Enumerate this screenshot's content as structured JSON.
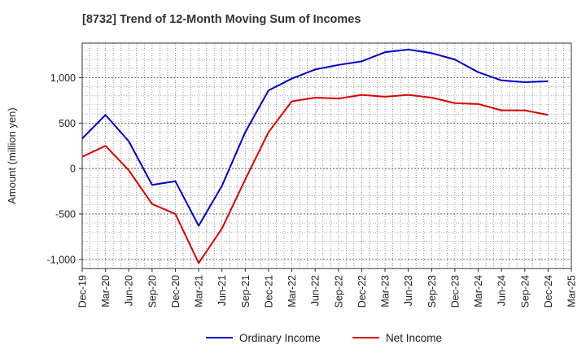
{
  "chart_data": {
    "type": "line",
    "title": "[8732]  Trend of 12-Month Moving Sum of Incomes",
    "xlabel": "",
    "ylabel": "Amount (million yen)",
    "ylim": [
      -1100,
      1380
    ],
    "yticks": [
      -1000,
      -500,
      0,
      500,
      1000
    ],
    "ytick_labels": [
      "-1,000",
      "-500",
      "0",
      "500",
      "1,000"
    ],
    "xtick_labels": [
      "Dec-19",
      "Mar-20",
      "Jun-20",
      "Sep-20",
      "Dec-20",
      "Mar-21",
      "Jun-21",
      "Sep-21",
      "Dec-21",
      "Mar-22",
      "Jun-22",
      "Sep-22",
      "Dec-22",
      "Mar-23",
      "Jun-23",
      "Sep-23",
      "Dec-23",
      "Mar-24",
      "Jun-24",
      "Sep-24",
      "Dec-24",
      "Mar-25"
    ],
    "grid": true,
    "legend_position": "bottom-center",
    "series": [
      {
        "name": "Ordinary Income",
        "color": "#0000cc",
        "values": [
          330,
          590,
          300,
          -180,
          -140,
          -630,
          -190,
          400,
          860,
          990,
          1090,
          1140,
          1180,
          1280,
          1310,
          1270,
          1200,
          1060,
          970,
          950,
          960
        ]
      },
      {
        "name": "Net Income",
        "color": "#dd0000",
        "values": [
          130,
          250,
          -20,
          -390,
          -500,
          -1040,
          -660,
          -120,
          400,
          740,
          780,
          770,
          810,
          790,
          810,
          780,
          720,
          710,
          640,
          640,
          590
        ]
      }
    ]
  }
}
